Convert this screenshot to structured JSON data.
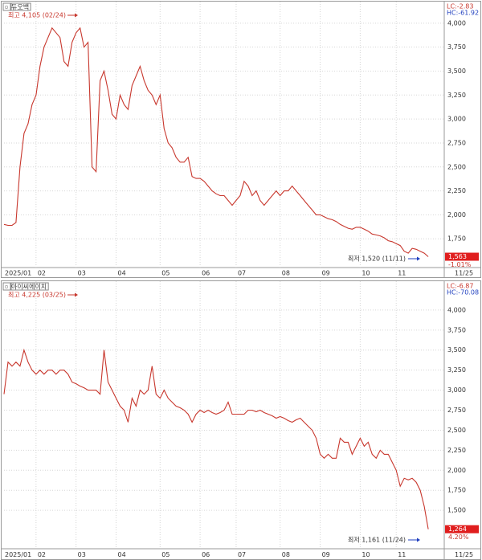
{
  "chart_data": [
    {
      "type": "line",
      "title": "듀오백",
      "color": "#c8372d",
      "high_label": "최고 4,105 (02/24)",
      "low_label": "최저 1,520 (11/11)",
      "lc_label": "LC:-2.83",
      "hc_label": "HC:-61.92",
      "last_price_label": "1,563",
      "change_label": "-1.01%",
      "end_date_label": "11/25",
      "xlim": [
        0,
        110
      ],
      "xticks": [
        {
          "value": 0,
          "label": "2025/01"
        },
        {
          "value": 8,
          "label": "02"
        },
        {
          "value": 18,
          "label": "03"
        },
        {
          "value": 28,
          "label": "04"
        },
        {
          "value": 39,
          "label": "05"
        },
        {
          "value": 49,
          "label": "06"
        },
        {
          "value": 58,
          "label": "07"
        },
        {
          "value": 69,
          "label": "08"
        },
        {
          "value": 79,
          "label": "09"
        },
        {
          "value": 89,
          "label": "10"
        },
        {
          "value": 98,
          "label": "11"
        }
      ],
      "ylim": [
        1450,
        4200
      ],
      "yticks": [
        {
          "value": 1750,
          "label": "1,750"
        },
        {
          "value": 2000,
          "label": "2,000"
        },
        {
          "value": 2250,
          "label": "2,250"
        },
        {
          "value": 2500,
          "label": "2,500"
        },
        {
          "value": 2750,
          "label": "2,750"
        },
        {
          "value": 3000,
          "label": "3,000"
        },
        {
          "value": 3250,
          "label": "3,250"
        },
        {
          "value": 3500,
          "label": "3,500"
        },
        {
          "value": 3750,
          "label": "3,750"
        },
        {
          "value": 4000,
          "label": "4,000"
        }
      ],
      "values": [
        1900,
        1890,
        1890,
        1920,
        2500,
        2850,
        2950,
        3150,
        3250,
        3550,
        3750,
        3850,
        3950,
        3900,
        3850,
        3600,
        3550,
        3800,
        3900,
        3950,
        3750,
        3800,
        2500,
        2450,
        3400,
        3500,
        3300,
        3050,
        3000,
        3250,
        3150,
        3100,
        3350,
        3450,
        3550,
        3400,
        3300,
        3250,
        3150,
        3250,
        2900,
        2750,
        2700,
        2600,
        2550,
        2550,
        2600,
        2400,
        2380,
        2380,
        2350,
        2300,
        2250,
        2220,
        2200,
        2200,
        2150,
        2100,
        2150,
        2200,
        2350,
        2300,
        2200,
        2250,
        2150,
        2100,
        2150,
        2200,
        2250,
        2200,
        2250,
        2250,
        2300,
        2250,
        2200,
        2150,
        2100,
        2050,
        2000,
        2000,
        1980,
        1960,
        1950,
        1930,
        1900,
        1880,
        1860,
        1850,
        1870,
        1870,
        1850,
        1830,
        1800,
        1790,
        1780,
        1760,
        1730,
        1720,
        1700,
        1680,
        1620,
        1600,
        1650,
        1640,
        1620,
        1600,
        1563
      ]
    },
    {
      "type": "line",
      "title": "아이씨에이치",
      "color": "#c8372d",
      "high_label": "최고 4,225 (03/25)",
      "low_label": "최저 1,161 (11/24)",
      "lc_label": "LC:-6.87",
      "hc_label": "HC:-70.08",
      "last_price_label": "1,264",
      "change_label": "4.20%",
      "end_date_label": "11/25",
      "xlim": [
        0,
        110
      ],
      "xticks": [
        {
          "value": 0,
          "label": "2025/01"
        },
        {
          "value": 8,
          "label": "02"
        },
        {
          "value": 18,
          "label": "03"
        },
        {
          "value": 28,
          "label": "04"
        },
        {
          "value": 39,
          "label": "05"
        },
        {
          "value": 49,
          "label": "06"
        },
        {
          "value": 58,
          "label": "07"
        },
        {
          "value": 69,
          "label": "08"
        },
        {
          "value": 79,
          "label": "09"
        },
        {
          "value": 89,
          "label": "10"
        },
        {
          "value": 98,
          "label": "11"
        }
      ],
      "ylim": [
        1020,
        4350
      ],
      "yticks": [
        {
          "value": 1500,
          "label": "1,500"
        },
        {
          "value": 1750,
          "label": "1,750"
        },
        {
          "value": 2000,
          "label": "2,000"
        },
        {
          "value": 2250,
          "label": "2,250"
        },
        {
          "value": 2500,
          "label": "2,500"
        },
        {
          "value": 2750,
          "label": "2,750"
        },
        {
          "value": 3000,
          "label": "3,000"
        },
        {
          "value": 3250,
          "label": "3,250"
        },
        {
          "value": 3500,
          "label": "3,500"
        },
        {
          "value": 3750,
          "label": "3,750"
        },
        {
          "value": 4000,
          "label": "4,000"
        }
      ],
      "values": [
        2950,
        3350,
        3300,
        3350,
        3300,
        3500,
        3350,
        3250,
        3200,
        3250,
        3200,
        3250,
        3250,
        3200,
        3250,
        3250,
        3200,
        3100,
        3080,
        3050,
        3030,
        3000,
        3000,
        3000,
        2950,
        3500,
        3100,
        3000,
        2900,
        2800,
        2750,
        2600,
        2900,
        2800,
        3000,
        2950,
        3000,
        3300,
        2950,
        2900,
        3000,
        2900,
        2850,
        2800,
        2780,
        2750,
        2700,
        2600,
        2700,
        2750,
        2720,
        2750,
        2720,
        2700,
        2720,
        2750,
        2850,
        2700,
        2700,
        2700,
        2700,
        2750,
        2750,
        2730,
        2750,
        2720,
        2700,
        2680,
        2650,
        2670,
        2650,
        2620,
        2600,
        2630,
        2650,
        2600,
        2550,
        2500,
        2400,
        2200,
        2150,
        2200,
        2150,
        2150,
        2400,
        2350,
        2350,
        2200,
        2300,
        2400,
        2300,
        2350,
        2200,
        2150,
        2250,
        2200,
        2200,
        2100,
        2000,
        1800,
        1900,
        1880,
        1900,
        1850,
        1750,
        1550,
        1264
      ]
    }
  ]
}
